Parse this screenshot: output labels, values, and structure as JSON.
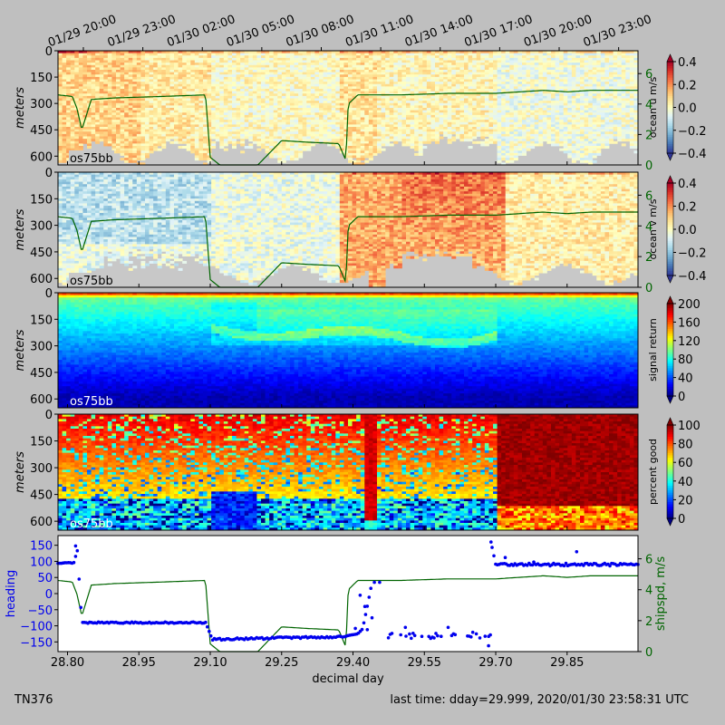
{
  "figure": {
    "footer_left": "TN376",
    "footer_right": "last time: dday=29.999,  2020/01/30 23:58:31 UTC"
  },
  "colors": {
    "background": "#bfbfbf",
    "shipspd_line": "#006400",
    "heading_points": "#0000ee",
    "no_data": "#c8c8c8"
  },
  "top_time_axis": {
    "labels": [
      "01/29 20:00",
      "01/29 23:00",
      "01/30 02:00",
      "01/30 05:00",
      "01/30 08:00",
      "01/30 11:00",
      "01/30 14:00",
      "01/30 17:00",
      "01/30 20:00",
      "01/30 23:00"
    ],
    "ddays": [
      28.8333,
      28.9583,
      29.0833,
      29.2083,
      29.3333,
      29.4583,
      29.5833,
      29.7083,
      29.8333,
      29.9583
    ]
  },
  "xaxis": {
    "label": "decimal day",
    "range": [
      28.78,
      29.999
    ],
    "ticks": [
      "28.80",
      "28.95",
      "29.10",
      "29.25",
      "29.40",
      "29.55",
      "29.70",
      "29.85"
    ]
  },
  "panels": [
    {
      "ylabel": "meters",
      "yticks": [
        "0",
        "150",
        "300",
        "450",
        "600"
      ],
      "tag": "os75bb",
      "cbar_label": "ocean u m/s",
      "cbar_ticks": [
        "0.4",
        "0.2",
        "0.0",
        "−0.2",
        "−0.4"
      ],
      "colormap": "RdYlBu_r",
      "right_ticks": [
        "6",
        "4",
        "2",
        "0"
      ]
    },
    {
      "ylabel": "meters",
      "yticks": [
        "0",
        "150",
        "300",
        "450",
        "600"
      ],
      "tag": "os75bb",
      "cbar_label": "ocean v m/s",
      "cbar_ticks": [
        "0.4",
        "0.2",
        "0.0",
        "−0.2",
        "−0.4"
      ],
      "colormap": "RdYlBu_r",
      "right_ticks": [
        "6",
        "4",
        "2",
        "0"
      ]
    },
    {
      "ylabel": "meters",
      "yticks": [
        "0",
        "150",
        "300",
        "450",
        "600"
      ],
      "tag": "os75bb",
      "cbar_label": "signal return",
      "cbar_ticks": [
        "200",
        "160",
        "120",
        "80",
        "40",
        "0"
      ],
      "colormap": "jet"
    },
    {
      "ylabel": "meters",
      "yticks": [
        "0",
        "150",
        "300",
        "450",
        "600"
      ],
      "tag": "os75bb",
      "cbar_label": "percent good",
      "cbar_ticks": [
        "100",
        "80",
        "60",
        "40",
        "20",
        "0"
      ],
      "colormap": "jet"
    }
  ],
  "bottom_panel": {
    "ylabel_left": "heading",
    "ylabel_right": "shipspd, m/s",
    "left_ticks": [
      "150",
      "100",
      "50",
      "0",
      "−50",
      "−100",
      "−150"
    ],
    "right_ticks": [
      "6",
      "4",
      "2",
      "0"
    ]
  },
  "chart_data": {
    "type": "line",
    "x_label": "decimal day",
    "y_label": "heading",
    "xlim": [
      28.78,
      29.999
    ],
    "series": [
      {
        "name": "heading",
        "x": [
          28.78,
          28.815,
          28.82,
          28.83,
          28.9,
          29.0,
          29.09,
          29.105,
          29.2,
          29.3,
          29.38,
          29.39,
          29.41,
          29.42,
          29.43,
          29.44,
          29.46,
          29.5,
          29.55,
          29.6,
          29.68,
          29.69,
          29.7,
          29.75,
          29.8,
          29.85,
          29.9,
          29.999
        ],
        "y": [
          95,
          95,
          148,
          -90,
          -90,
          -90,
          -88,
          -145,
          -140,
          -135,
          -135,
          -130,
          -125,
          -110,
          -40,
          35,
          35,
          -130,
          -135,
          -135,
          -135,
          160,
          90,
          90,
          92,
          95,
          88,
          85
        ]
      },
      {
        "name": "shipspd",
        "x": [
          28.78,
          28.81,
          28.82,
          28.83,
          28.85,
          28.9,
          29.0,
          29.09,
          29.1,
          29.12,
          29.2,
          29.25,
          29.3,
          29.37,
          29.385,
          29.39,
          29.41,
          29.45,
          29.5,
          29.6,
          29.65,
          29.7,
          29.75,
          29.8,
          29.85,
          29.9,
          29.95,
          29.999
        ],
        "y": [
          4.6,
          4.5,
          3.7,
          2.3,
          4.3,
          4.4,
          4.5,
          4.6,
          0.5,
          0,
          0,
          1.6,
          1.5,
          1.4,
          0.3,
          4.0,
          4.6,
          4.6,
          4.6,
          4.7,
          4.7,
          4.7,
          4.8,
          4.9,
          4.8,
          4.9,
          4.9,
          4.9
        ]
      }
    ],
    "heatmaps": [
      {
        "name": "ocean u m/s",
        "clim": [
          -0.4,
          0.4
        ],
        "ylim_m": [
          0,
          650
        ]
      },
      {
        "name": "ocean v m/s",
        "clim": [
          -0.4,
          0.4
        ],
        "ylim_m": [
          0,
          650
        ]
      },
      {
        "name": "signal return",
        "clim": [
          0,
          200
        ],
        "ylim_m": [
          0,
          650
        ]
      },
      {
        "name": "percent good",
        "clim": [
          0,
          100
        ],
        "ylim_m": [
          0,
          650
        ]
      }
    ],
    "right_axis": {
      "label": "shipspd, m/s",
      "ylim": [
        0,
        7.5
      ]
    },
    "left_axis_heading": {
      "ylim": [
        -180,
        180
      ]
    }
  }
}
